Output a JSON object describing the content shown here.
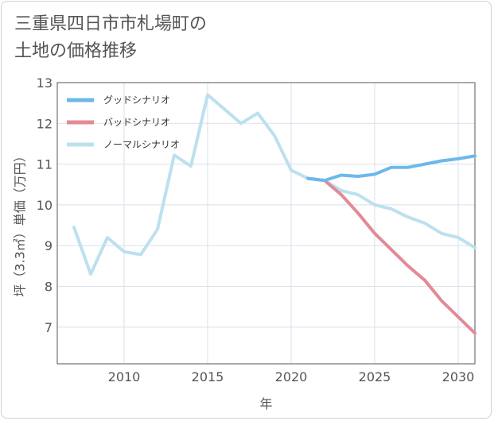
{
  "title": "三重県四日市市札場町の\n土地の価格推移",
  "chart_data": {
    "type": "line",
    "xlabel": "年",
    "ylabel": "坪（3.3㎡）単価（万円）",
    "xlim": [
      2006,
      2031
    ],
    "ylim": [
      6.1,
      13
    ],
    "xticks": [
      2010,
      2015,
      2020,
      2025,
      2030
    ],
    "yticks": [
      7,
      8,
      9,
      10,
      11,
      12,
      13
    ],
    "grid": true,
    "legend_position": "top-left",
    "series": [
      {
        "name": "グッドシナリオ",
        "color": "#6cb8ec",
        "x": [
          2021,
          2022,
          2023,
          2024,
          2025,
          2026,
          2027,
          2028,
          2029,
          2030,
          2031
        ],
        "y": [
          10.65,
          10.6,
          10.73,
          10.7,
          10.75,
          10.92,
          10.92,
          11.0,
          11.08,
          11.13,
          11.2
        ]
      },
      {
        "name": "バッドシナリオ",
        "color": "#e28a96",
        "x": [
          2021,
          2022,
          2023,
          2024,
          2025,
          2026,
          2027,
          2028,
          2029,
          2030,
          2031
        ],
        "y": [
          10.65,
          10.6,
          10.25,
          9.8,
          9.3,
          8.9,
          8.5,
          8.15,
          7.65,
          7.25,
          6.85
        ]
      },
      {
        "name": "ノーマルシナリオ",
        "color": "#bde0ee",
        "x": [
          2007,
          2008,
          2009,
          2010,
          2011,
          2012,
          2013,
          2014,
          2015,
          2016,
          2017,
          2018,
          2019,
          2020,
          2021,
          2022,
          2023,
          2024,
          2025,
          2026,
          2027,
          2028,
          2029,
          2030,
          2031
        ],
        "y": [
          9.45,
          8.3,
          9.2,
          8.85,
          8.78,
          9.4,
          11.22,
          10.95,
          12.7,
          12.35,
          12.0,
          12.25,
          11.7,
          10.85,
          10.65,
          10.6,
          10.35,
          10.25,
          10.0,
          9.9,
          9.7,
          9.55,
          9.3,
          9.2,
          8.95
        ]
      }
    ]
  }
}
